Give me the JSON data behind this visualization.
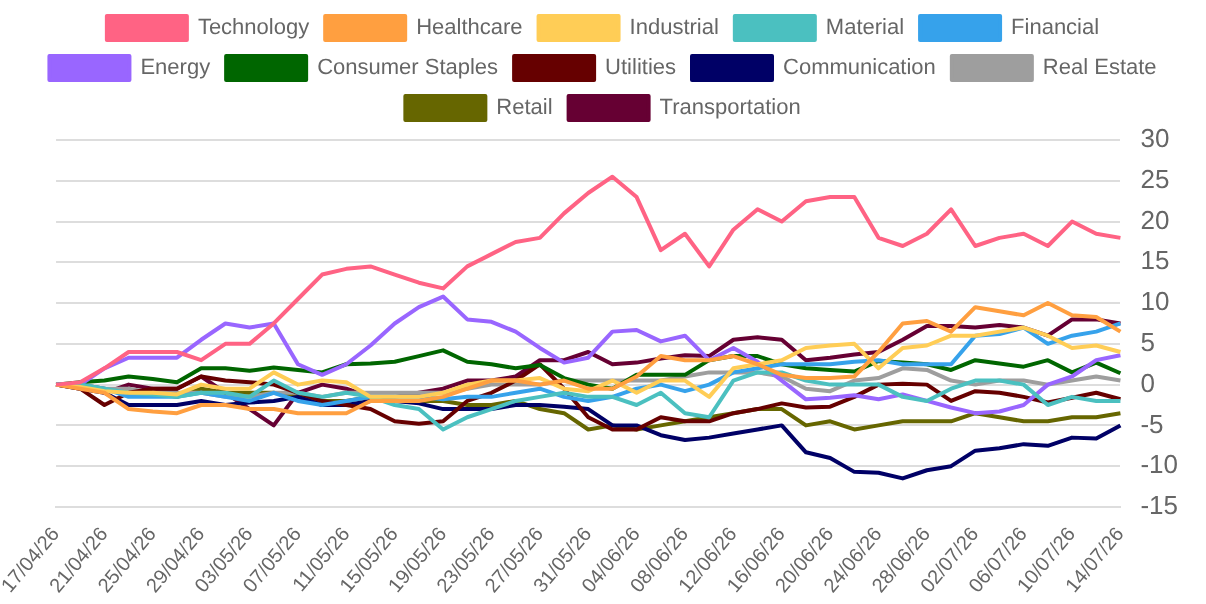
{
  "chart_data": {
    "type": "line",
    "legend": "top",
    "grid": "y",
    "marker": "none",
    "line_style": "solid",
    "categories": [
      "17/04/26",
      null,
      "21/04/26",
      null,
      "25/04/26",
      null,
      "29/04/26",
      null,
      "03/05/26",
      null,
      "07/05/26",
      null,
      "11/05/26",
      null,
      "15/05/26",
      null,
      "19/05/26",
      null,
      "23/05/26",
      null,
      "27/05/26",
      null,
      "31/05/26",
      null,
      "04/06/26",
      null,
      "08/06/26",
      null,
      "12/06/26",
      null,
      "16/06/26",
      null,
      "20/06/26",
      null,
      "24/06/26",
      null,
      "28/06/26",
      null,
      "02/07/26",
      null,
      "06/07/26",
      null,
      "10/07/26",
      null,
      "14/07/26"
    ],
    "ylim": [
      -15,
      30
    ],
    "yticks": [
      -15,
      -10,
      -5,
      0,
      5,
      10,
      15,
      20,
      25,
      30
    ],
    "series": [
      {
        "name": "Technology",
        "color": "#ff6384",
        "values": [
          0,
          0.3,
          2,
          4,
          4,
          4,
          3,
          5,
          5,
          7.5,
          10.5,
          13.5,
          14.2,
          14.5,
          13.5,
          12.5,
          11.8,
          14.5,
          16,
          17.5,
          18,
          21,
          23.5,
          25.5,
          23,
          16.5,
          18.5,
          14.5,
          19,
          21.5,
          20,
          22.5,
          23,
          23,
          18,
          17,
          18.5,
          21.5,
          17,
          18,
          18.5,
          17,
          20,
          18.5,
          18
        ]
      },
      {
        "name": "Healthcare",
        "color": "#ff9f40",
        "values": [
          0,
          -0.5,
          -1,
          -3,
          -3.3,
          -3.5,
          -2.5,
          -2.5,
          -3,
          -3,
          -3.5,
          -3.5,
          -3.5,
          -2,
          -2,
          -2,
          -1.5,
          -0.5,
          0.5,
          0.5,
          0,
          0.5,
          -0.5,
          -0.5,
          1,
          3.5,
          3,
          3,
          3.5,
          2.5,
          1.2,
          0.8,
          0.8,
          1,
          4,
          7.5,
          7.8,
          6.5,
          9.5,
          9,
          8.5,
          10,
          8.5,
          8.3,
          6.5
        ]
      },
      {
        "name": "Industrial",
        "color": "#ffcd56",
        "values": [
          0,
          -0.3,
          -0.8,
          -1,
          -1,
          -1.2,
          0,
          -0.5,
          -0.5,
          1.5,
          0,
          0.5,
          0.3,
          -1.5,
          -1.5,
          -1.5,
          -1,
          0,
          0.5,
          0.5,
          0.8,
          -0.5,
          -0.8,
          0.5,
          -1,
          0.5,
          0.5,
          -1.5,
          2,
          2.5,
          3,
          4.5,
          4.8,
          5,
          2,
          4.5,
          4.8,
          6,
          6,
          6.5,
          7,
          6,
          4.5,
          4.8,
          4
        ]
      },
      {
        "name": "Material",
        "color": "#4bc0c0",
        "values": [
          0,
          0,
          -0.5,
          -1,
          -1.2,
          -1.5,
          -1,
          -1,
          -1.5,
          0.5,
          -1,
          -1.5,
          -1,
          -1.5,
          -2.5,
          -3,
          -5.5,
          -4,
          -3,
          -2,
          -1.5,
          -1,
          -1.5,
          -1.5,
          -2.5,
          -1,
          -3.5,
          -4,
          0.5,
          1.5,
          1.5,
          0.5,
          0,
          0,
          0,
          -1.5,
          -2,
          -0.5,
          0.5,
          0.5,
          0,
          -2.5,
          -1.5,
          -2,
          -2
        ]
      },
      {
        "name": "Financial",
        "color": "#36a2eb",
        "values": [
          0,
          0,
          -0.5,
          -1.5,
          -1.5,
          -1.5,
          -1,
          -1.5,
          -2,
          -1,
          -2,
          -2.5,
          -2,
          -1.5,
          -1.5,
          -1.5,
          -1.8,
          -1.5,
          -1.5,
          -1,
          -0.5,
          -1.5,
          -2,
          -1.5,
          -0.5,
          0,
          -0.8,
          0,
          1.5,
          2,
          2.5,
          2.5,
          2.5,
          2.8,
          3,
          2.5,
          2.5,
          2.5,
          6,
          6.2,
          7,
          5,
          6,
          6.5,
          7.5
        ]
      },
      {
        "name": "Energy",
        "color": "#9966ff",
        "values": [
          0,
          0,
          2,
          3.3,
          3.3,
          3.3,
          5.5,
          7.5,
          7,
          7.5,
          2.5,
          1.2,
          2.5,
          4.8,
          7.5,
          9.5,
          10.8,
          8,
          7.7,
          6.5,
          4.5,
          2.7,
          3.3,
          6.5,
          6.7,
          5.3,
          6,
          3,
          4.5,
          2.8,
          0.5,
          -1.8,
          -1.6,
          -1.3,
          -1.8,
          -1.2,
          -2,
          -2.8,
          -3.5,
          -3.3,
          -2.5,
          0,
          1,
          3,
          3.6
        ]
      },
      {
        "name": "Consumer Staples",
        "color": "#006600",
        "values": [
          0,
          0.3,
          0.5,
          1,
          0.7,
          0.3,
          2,
          2,
          1.7,
          2.1,
          1.8,
          1.5,
          2.5,
          2.6,
          2.8,
          3.5,
          4.2,
          2.8,
          2.5,
          2,
          2.4,
          0.8,
          0,
          -0.5,
          1.2,
          1.2,
          1.2,
          3,
          3.5,
          3.5,
          2.5,
          2,
          1.8,
          1.6,
          2.9,
          2.7,
          2.5,
          1.8,
          3,
          2.6,
          2.2,
          3,
          1.5,
          2.7,
          1.4
        ]
      },
      {
        "name": "Utilities",
        "color": "#660000",
        "values": [
          0,
          -0.5,
          -2.5,
          -1,
          -0.5,
          -0.5,
          1,
          0.5,
          0.3,
          0,
          -1,
          -2,
          -2.5,
          -3,
          -4.5,
          -4.8,
          -4.5,
          -2,
          -1,
          0.5,
          2.5,
          -0.5,
          -4,
          -5.5,
          -5.5,
          -4,
          -4.5,
          -4.5,
          -3.5,
          -3,
          -2.3,
          -2.8,
          -2.7,
          -1.5,
          0,
          0.1,
          0,
          -2,
          -0.8,
          -1,
          -1.5,
          -2.2,
          -1.6,
          -1,
          -1.8
        ]
      },
      {
        "name": "Communication",
        "color": "#000066",
        "values": [
          0,
          -0.5,
          -1,
          -2.5,
          -2.5,
          -2.5,
          -2,
          -2.5,
          -2.2,
          -2,
          -1.5,
          -2.5,
          -2.5,
          -2,
          -2,
          -2.3,
          -3,
          -3,
          -3,
          -2.5,
          -2.5,
          -2.7,
          -3,
          -5,
          -5,
          -6.2,
          -6.8,
          -6.5,
          -6,
          -5.5,
          -5,
          -8.3,
          -9,
          -10.7,
          -10.8,
          -11.5,
          -10.5,
          -10,
          -8.1,
          -7.8,
          -7.3,
          -7.5,
          -6.5,
          -6.6,
          -5
        ]
      },
      {
        "name": "Real Estate",
        "color": "#9e9e9e",
        "values": [
          0,
          0,
          -0.5,
          -0.5,
          -1,
          -1,
          -1,
          -1.5,
          -1.5,
          -1,
          -1,
          -1.5,
          -1,
          -1,
          -1,
          -1,
          -1,
          -0.5,
          0,
          0,
          0,
          0.5,
          0.5,
          0.5,
          0.5,
          0.5,
          1,
          1.5,
          1.5,
          1.5,
          1,
          -0.5,
          -0.8,
          0.5,
          0.8,
          2,
          1.8,
          0.5,
          0,
          0.5,
          0.5,
          0,
          0.5,
          1,
          0.5
        ]
      },
      {
        "name": "Retail",
        "color": "#666600",
        "values": [
          0,
          0,
          -0.5,
          -1,
          -1,
          -1.5,
          -0.5,
          -1,
          -1,
          -1,
          -1.5,
          -2,
          -2,
          -1.5,
          -2,
          -2,
          -2,
          -2.5,
          -2.5,
          -2,
          -3,
          -3.5,
          -5.5,
          -5,
          -5.5,
          -5,
          -4.5,
          -4,
          -3.5,
          -3,
          -3,
          -5,
          -4.5,
          -5.5,
          -5,
          -4.5,
          -4.5,
          -4.5,
          -3.5,
          -4,
          -4.5,
          -4.5,
          -4,
          -4,
          -3.5
        ]
      },
      {
        "name": "Transportation",
        "color": "#660033",
        "values": [
          0,
          0,
          -1,
          0,
          -0.5,
          -0.5,
          1,
          -1,
          -3,
          -5,
          -1,
          0,
          -0.5,
          -1.5,
          -1.5,
          -1,
          -0.5,
          0.5,
          0.5,
          1,
          3,
          3,
          4,
          2.5,
          2.7,
          3.2,
          3.6,
          3.5,
          5.5,
          5.8,
          5.5,
          3,
          3.3,
          3.7,
          4,
          5.5,
          7.2,
          7.2,
          7,
          7.3,
          7,
          6,
          8,
          8,
          7.5
        ]
      }
    ]
  }
}
